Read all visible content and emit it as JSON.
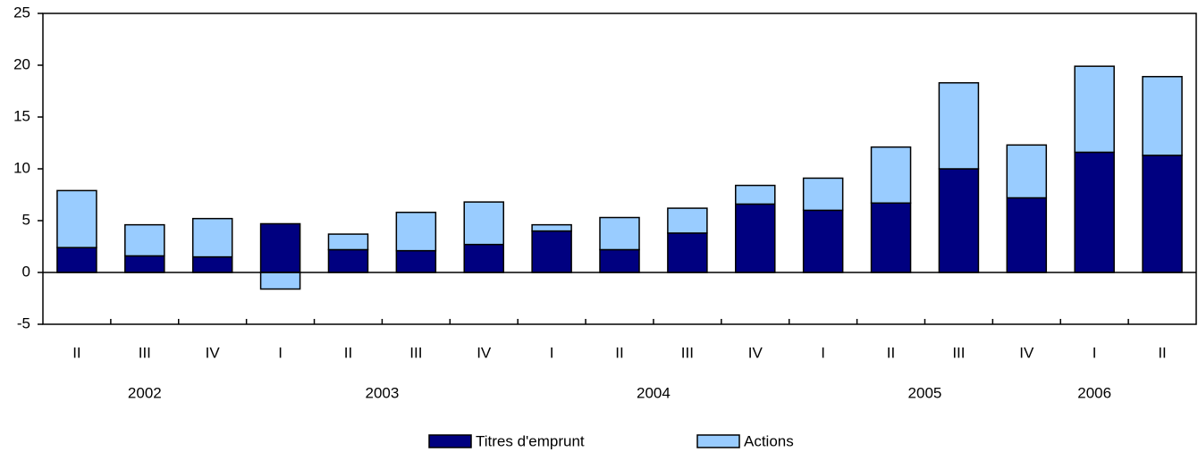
{
  "chart_data": {
    "type": "bar",
    "stacked": true,
    "categories": [
      "II",
      "III",
      "IV",
      "I",
      "II",
      "III",
      "IV",
      "I",
      "II",
      "III",
      "IV",
      "I",
      "II",
      "III",
      "IV",
      "I",
      "II"
    ],
    "year_labels": [
      "2002",
      "2003",
      "2004",
      "2005",
      "2006"
    ],
    "series": [
      {
        "name": "Titres d'emprunt",
        "color": "#000080",
        "values": [
          2.4,
          1.6,
          1.5,
          4.7,
          2.2,
          2.1,
          2.7,
          4.0,
          2.2,
          3.8,
          6.6,
          6.0,
          6.7,
          10.0,
          7.2,
          11.6,
          11.3
        ]
      },
      {
        "name": "Actions",
        "color": "#99ccff",
        "values": [
          5.5,
          3.0,
          3.7,
          -1.6,
          1.5,
          3.7,
          4.1,
          0.6,
          3.1,
          2.4,
          1.8,
          3.1,
          5.4,
          8.3,
          5.1,
          8.3,
          7.6
        ]
      }
    ],
    "ylim": [
      -5,
      25
    ],
    "yticks": [
      -5,
      0,
      5,
      10,
      15,
      20,
      25
    ],
    "grid": false
  }
}
